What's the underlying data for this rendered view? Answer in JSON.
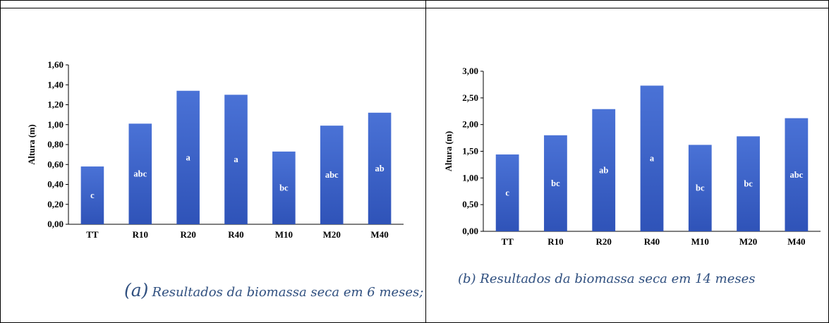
{
  "colors": {
    "bar_top": "#4a72d6",
    "bar_bottom": "#2f53b8",
    "caption": "#2f4f7f"
  },
  "chart_data": [
    {
      "type": "bar",
      "ylabel": "Altura (m)",
      "xlabel": "",
      "title": "",
      "categories": [
        "TT",
        "R10",
        "R20",
        "R40",
        "M10",
        "M20",
        "M40"
      ],
      "values": [
        0.58,
        1.01,
        1.34,
        1.3,
        0.73,
        0.99,
        1.12
      ],
      "bar_labels": [
        "c",
        "abc",
        "a",
        "a",
        "bc",
        "abc",
        "ab"
      ],
      "ylim": [
        0,
        1.6
      ],
      "yticks": [
        "0,00",
        "0,20",
        "0,40",
        "0,60",
        "0,80",
        "1,00",
        "1,20",
        "1,40",
        "1,60"
      ],
      "grid": false,
      "caption_letter": "(a)",
      "caption_text": "Resultados da biomassa seca em 6 meses;"
    },
    {
      "type": "bar",
      "ylabel": "Altura (m)",
      "xlabel": "",
      "title": "",
      "categories": [
        "TT",
        "R10",
        "R20",
        "R40",
        "M10",
        "M20",
        "M40"
      ],
      "values": [
        1.44,
        1.8,
        2.29,
        2.73,
        1.62,
        1.78,
        2.12
      ],
      "bar_labels": [
        "c",
        "bc",
        "ab",
        "a",
        "bc",
        "bc",
        "abc"
      ],
      "ylim": [
        0,
        3.0
      ],
      "yticks": [
        "0,00",
        "0,50",
        "1,00",
        "1,50",
        "2,00",
        "2,50",
        "3,00"
      ],
      "grid": false,
      "caption_text": "(b) Resultados da biomassa seca em 14 meses"
    }
  ]
}
